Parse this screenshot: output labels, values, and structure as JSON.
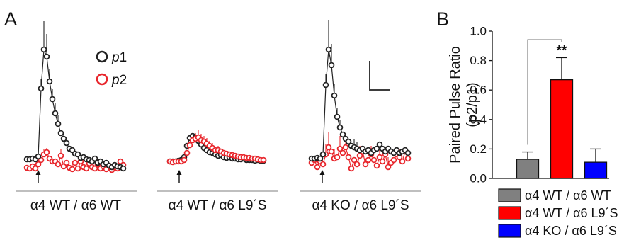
{
  "panel_a": {
    "letter": "A",
    "legend": [
      {
        "label_base": "p",
        "label_sub": "1",
        "color": "#222222"
      },
      {
        "label_base": "p",
        "label_sub": "2",
        "color": "#e8262c"
      }
    ],
    "groups": [
      {
        "label": "α4 WT / α6 WT"
      },
      {
        "label": "α4 WT / α6 L9´S"
      },
      {
        "label": "α4 KO / α6 L9´S"
      }
    ]
  },
  "panel_b": {
    "letter": "B",
    "significance": "**"
  },
  "chart_data": {
    "type": "bar",
    "categories": [
      "α4 WT / α6 WT",
      "α4 WT / α6 L9´S",
      "α4 KO / α6 L9´S"
    ],
    "values": [
      0.13,
      0.67,
      0.11
    ],
    "errors": [
      0.05,
      0.15,
      0.09
    ],
    "colors": [
      "#808080",
      "#ff0000",
      "#0000ff"
    ],
    "ylabel_main": "Paired Pulse Ratio",
    "ylabel_sub_a": "(p2/p1)",
    "ylim": [
      0,
      1.0
    ],
    "yticks": [
      "0.0",
      "0.2",
      "0.4",
      "0.6",
      "0.8",
      "1.0"
    ],
    "legend_position": "bottom",
    "annotation": "**"
  }
}
